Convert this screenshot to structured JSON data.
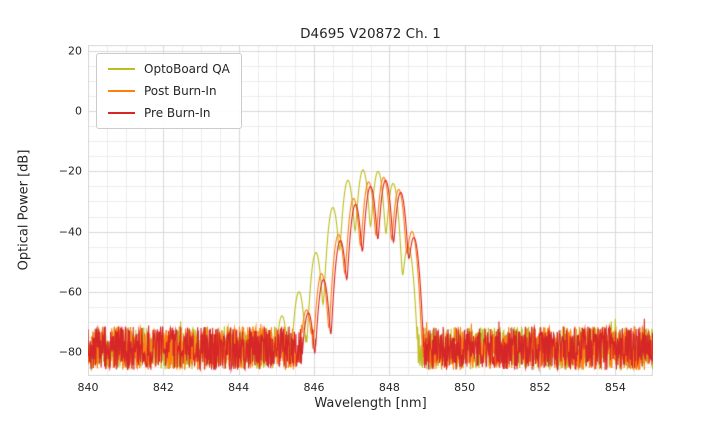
{
  "chart_data": {
    "type": "line",
    "title": "D4695 V20872 Ch. 1",
    "xlabel": "Wavelength [nm]",
    "ylabel": "Optical Power [dB]",
    "xlim": [
      840,
      855
    ],
    "ylim": [
      -88,
      22
    ],
    "x_ticks": {
      "values": [
        840,
        842,
        844,
        846,
        848,
        850,
        852,
        854
      ],
      "labels": [
        "840",
        "842",
        "844",
        "846",
        "848",
        "850",
        "852",
        "854"
      ]
    },
    "y_ticks": {
      "values": [
        20,
        0,
        -20,
        -40,
        -60,
        -80
      ],
      "labels": [
        "20",
        "0",
        "−20",
        "−40",
        "−60",
        "−80"
      ]
    },
    "grid": {
      "on": true,
      "x_major_step": 2,
      "x_minor_step": 0.5,
      "y_major_step": 20,
      "y_minor_step": 5,
      "major_color": "#d9d9d9",
      "minor_color": "#ececec"
    },
    "legend_position": "upper-left",
    "noise_floor": {
      "min_db": -86,
      "max_db": -71.5,
      "spike_bonus_db": 3,
      "spike_probability": 0.02,
      "sample_step_nm": 0.01
    },
    "mode_sigma_nm": 0.09,
    "series": [
      {
        "name": "OptoBoard QA",
        "color": "#bcbd22",
        "seed": 101,
        "peak_nm": 847.3,
        "peak_db": -19.5,
        "modes": [
          [
            845.15,
            -68
          ],
          [
            845.6,
            -60
          ],
          [
            846.05,
            -47
          ],
          [
            846.5,
            -32
          ],
          [
            846.9,
            -23
          ],
          [
            847.3,
            -19.5
          ],
          [
            847.7,
            -20
          ],
          [
            848.1,
            -24
          ],
          [
            848.5,
            -45
          ]
        ]
      },
      {
        "name": "Post Burn-In",
        "color": "#ff7f0e",
        "seed": 202,
        "peak_nm": 847.85,
        "peak_db": -22,
        "modes": [
          [
            845.8,
            -66
          ],
          [
            846.2,
            -54
          ],
          [
            846.65,
            -41
          ],
          [
            847.05,
            -29
          ],
          [
            847.45,
            -23.5
          ],
          [
            847.85,
            -22
          ],
          [
            848.25,
            -26
          ],
          [
            848.6,
            -40
          ]
        ]
      },
      {
        "name": "Pre Burn-In",
        "color": "#d62728",
        "seed": 303,
        "peak_nm": 847.9,
        "peak_db": -23,
        "modes": [
          [
            845.85,
            -67
          ],
          [
            846.25,
            -56
          ],
          [
            846.7,
            -43
          ],
          [
            847.1,
            -31
          ],
          [
            847.5,
            -25
          ],
          [
            847.9,
            -23
          ],
          [
            848.3,
            -27
          ],
          [
            848.65,
            -42
          ]
        ]
      }
    ]
  }
}
